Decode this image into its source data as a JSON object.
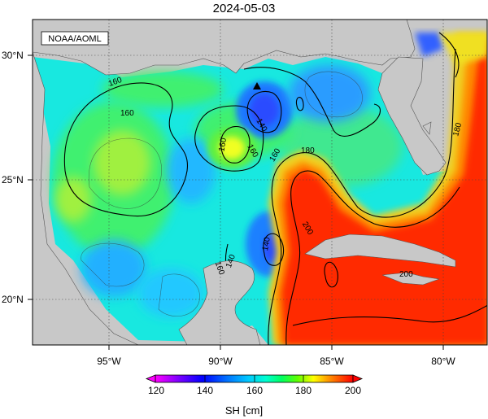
{
  "title": "2024-05-03",
  "credit": "NOAA/AOML",
  "lat_labels": [
    "30°N",
    "25°N",
    "20°N"
  ],
  "lon_labels": [
    "95°W",
    "90°W",
    "85°W",
    "80°W"
  ],
  "contour_labels": [
    "160",
    "160",
    "160",
    "160",
    "180",
    "140",
    "140",
    "160",
    "180",
    "180",
    "200",
    "200",
    "140",
    "160"
  ],
  "colorbar": {
    "label": "SH [cm]",
    "ticks": [
      "120",
      "140",
      "160",
      "180",
      "200"
    ],
    "range": [
      120,
      200
    ],
    "colors": [
      "#ff00ff",
      "#7a00ff",
      "#0000ff",
      "#0070ff",
      "#00c8ff",
      "#00ffd0",
      "#00ff80",
      "#00ff00",
      "#a0ff00",
      "#ffff00",
      "#ffc000",
      "#ff8000",
      "#ff3000",
      "#ff0000"
    ]
  },
  "palette": {
    "land": "#c8c8c8",
    "ocean_base": "#18e8e0",
    "loop_current": "#ff2000",
    "warm_eddy": "#f0ff20",
    "cold_eddy": "#1e6cff",
    "grid": "#444444"
  },
  "marker": "station-triangle"
}
